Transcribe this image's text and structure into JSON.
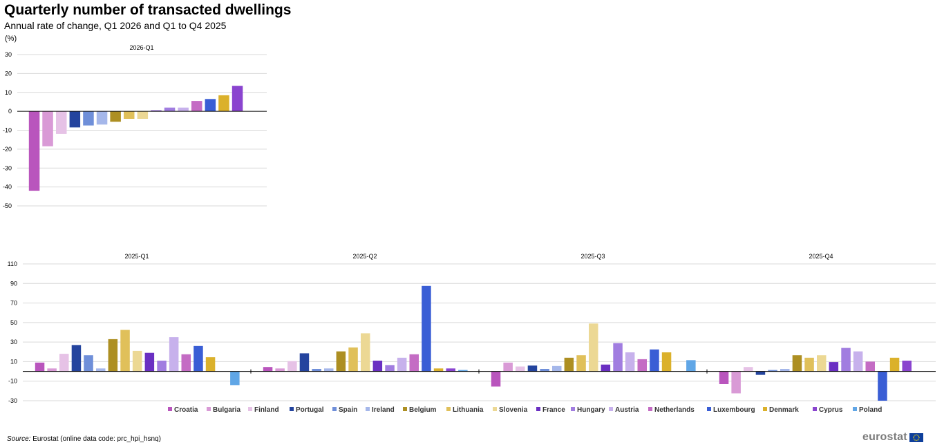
{
  "title": "Quarterly number of transacted dwellings",
  "subtitle": "Annual rate of change, Q1 2026 and Q1 to Q4 2025",
  "unit": "(%)",
  "source": {
    "label": "Source:",
    "text": "Eurostat (online data code: prc_hpi_hsnq)"
  },
  "logo": {
    "text": "eurostat"
  },
  "colors": [
    "#b955bd",
    "#d99ad6",
    "#e6c2e6",
    "#24449e",
    "#6f8fd9",
    "#a5b7ea",
    "#ad8f22",
    "#e0c05a",
    "#ecd894",
    "#6a2fc2",
    "#a17de0",
    "#c7b1ec",
    "#c46cc4",
    "#3a5ed5",
    "#dbb12b",
    "#8a44cf",
    "#60a6e6"
  ],
  "chart_data": {
    "type": "bar",
    "categories": [
      "Croatia",
      "Bulgaria",
      "Finland",
      "Portugal",
      "Spain",
      "Ireland",
      "Belgium",
      "Lithuania",
      "Slovenia",
      "France",
      "Hungary",
      "Austria",
      "Netherlands",
      "Luxembourg",
      "Denmark",
      "Cyprus",
      "Poland"
    ],
    "panels": [
      {
        "title": "2026-Q1",
        "ylim": [
          -50,
          30
        ],
        "yticks": [
          30,
          20,
          10,
          0,
          -10,
          -20,
          -30,
          -40,
          -50
        ],
        "bars": [
          {
            "category": "Croatia",
            "value": -42.0
          },
          {
            "category": "Bulgaria",
            "value": -18.5
          },
          {
            "category": "Finland",
            "value": -12.0
          },
          {
            "category": "Portugal",
            "value": -8.5
          },
          {
            "category": "Spain",
            "value": -7.5
          },
          {
            "category": "Ireland",
            "value": -7.0
          },
          {
            "category": "Belgium",
            "value": -5.5
          },
          {
            "category": "Lithuania",
            "value": -4.0
          },
          {
            "category": "Slovenia",
            "value": -4.0
          },
          {
            "category": "France",
            "value": 0.5
          },
          {
            "category": "Hungary",
            "value": 2.0
          },
          {
            "category": "Austria",
            "value": 2.0
          },
          {
            "category": "Netherlands",
            "value": 5.5
          },
          {
            "category": "Luxembourg",
            "value": 6.5
          },
          {
            "category": "Denmark",
            "value": 8.5
          },
          {
            "category": "Cyprus",
            "value": 13.5
          }
        ]
      },
      {
        "title": "2025-Q1",
        "ylim": [
          -30,
          110
        ],
        "yticks": [
          110,
          90,
          70,
          50,
          30,
          10,
          -10,
          -30
        ],
        "values": [
          9,
          3,
          18,
          27,
          16.5,
          3,
          33,
          42.5,
          21,
          19,
          11,
          35,
          17.5,
          26,
          14.5,
          null,
          -14
        ]
      },
      {
        "title": "2025-Q2",
        "values": [
          4.5,
          3,
          10.5,
          18.5,
          2.5,
          3,
          20.5,
          24.5,
          39,
          11,
          6.5,
          14,
          17.5,
          87.5,
          3,
          3,
          1.5
        ]
      },
      {
        "title": "2025-Q3",
        "values": [
          -15.5,
          9,
          5,
          6,
          2.5,
          5.5,
          14,
          16.5,
          49,
          7,
          29,
          19.5,
          12.5,
          22.5,
          19.5,
          null,
          11.5
        ]
      },
      {
        "title": "2025-Q4",
        "values": [
          -13,
          -22.5,
          4.5,
          -3.5,
          1.5,
          2.5,
          16.5,
          14,
          16.5,
          9.5,
          24,
          20.5,
          10,
          -30,
          14,
          11,
          null
        ]
      }
    ]
  }
}
